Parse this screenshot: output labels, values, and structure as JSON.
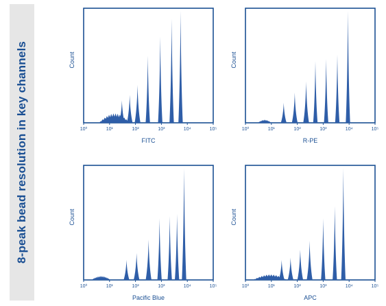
{
  "side_title": "8-peak bead resolution in key channels",
  "colors": {
    "frame": "#1a4f93",
    "fill": "#2f5ea8",
    "text": "#1a4f93",
    "band": "#e6e6e6"
  },
  "chart_data": [
    {
      "type": "histogram",
      "xlabel": "FITC",
      "ylabel": "Count",
      "xscale": "log",
      "xlim": [
        1,
        100000
      ],
      "tick_labels": [
        "10⁰",
        "10¹",
        "10²",
        "10³",
        "10⁴",
        "10⁵"
      ],
      "noise": {
        "from": 4,
        "to": 60,
        "level": 0.12
      },
      "peaks": [
        {
          "x": 30,
          "height": 0.2
        },
        {
          "x": 60,
          "height": 0.25
        },
        {
          "x": 120,
          "height": 0.34
        },
        {
          "x": 300,
          "height": 0.6
        },
        {
          "x": 900,
          "height": 0.77
        },
        {
          "x": 2500,
          "height": 0.93
        },
        {
          "x": 5500,
          "height": 1.0
        }
      ]
    },
    {
      "type": "histogram",
      "xlabel": "R-PE",
      "ylabel": "Count",
      "xscale": "log",
      "xlim": [
        1,
        100000
      ],
      "tick_labels": [
        "10⁰",
        "10¹",
        "10²",
        "10³",
        "10⁴",
        "10⁵"
      ],
      "noise": {
        "from": 3,
        "to": 10,
        "level": 0.04
      },
      "peaks": [
        {
          "x": 30,
          "height": 0.18
        },
        {
          "x": 80,
          "height": 0.27
        },
        {
          "x": 220,
          "height": 0.37
        },
        {
          "x": 500,
          "height": 0.55
        },
        {
          "x": 1300,
          "height": 0.57
        },
        {
          "x": 3500,
          "height": 0.61
        },
        {
          "x": 9000,
          "height": 1.0
        }
      ]
    },
    {
      "type": "histogram",
      "xlabel": "Pacific Blue",
      "ylabel": "Count",
      "xscale": "log",
      "xlim": [
        1,
        100000
      ],
      "tick_labels": [
        "10⁰",
        "10¹",
        "10²",
        "10³",
        "10⁴",
        "10⁵"
      ],
      "noise": {
        "from": 2,
        "to": 11,
        "level": 0.05
      },
      "peaks": [
        {
          "x": 45,
          "height": 0.18
        },
        {
          "x": 110,
          "height": 0.24
        },
        {
          "x": 320,
          "height": 0.36
        },
        {
          "x": 850,
          "height": 0.55
        },
        {
          "x": 2100,
          "height": 0.57
        },
        {
          "x": 4000,
          "height": 0.59
        },
        {
          "x": 7500,
          "height": 1.0
        }
      ]
    },
    {
      "type": "histogram",
      "xlabel": "APC",
      "ylabel": "Count",
      "xscale": "log",
      "xlim": [
        1,
        100000
      ],
      "tick_labels": [
        "10⁰",
        "10¹",
        "10²",
        "10³",
        "10⁴",
        "10⁵"
      ],
      "noise": {
        "from": 2,
        "to": 40,
        "level": 0.07
      },
      "peaks": [
        {
          "x": 25,
          "height": 0.18
        },
        {
          "x": 55,
          "height": 0.2
        },
        {
          "x": 130,
          "height": 0.27
        },
        {
          "x": 300,
          "height": 0.35
        },
        {
          "x": 1000,
          "height": 0.55
        },
        {
          "x": 2800,
          "height": 0.66
        },
        {
          "x": 6000,
          "height": 1.0
        }
      ]
    }
  ]
}
